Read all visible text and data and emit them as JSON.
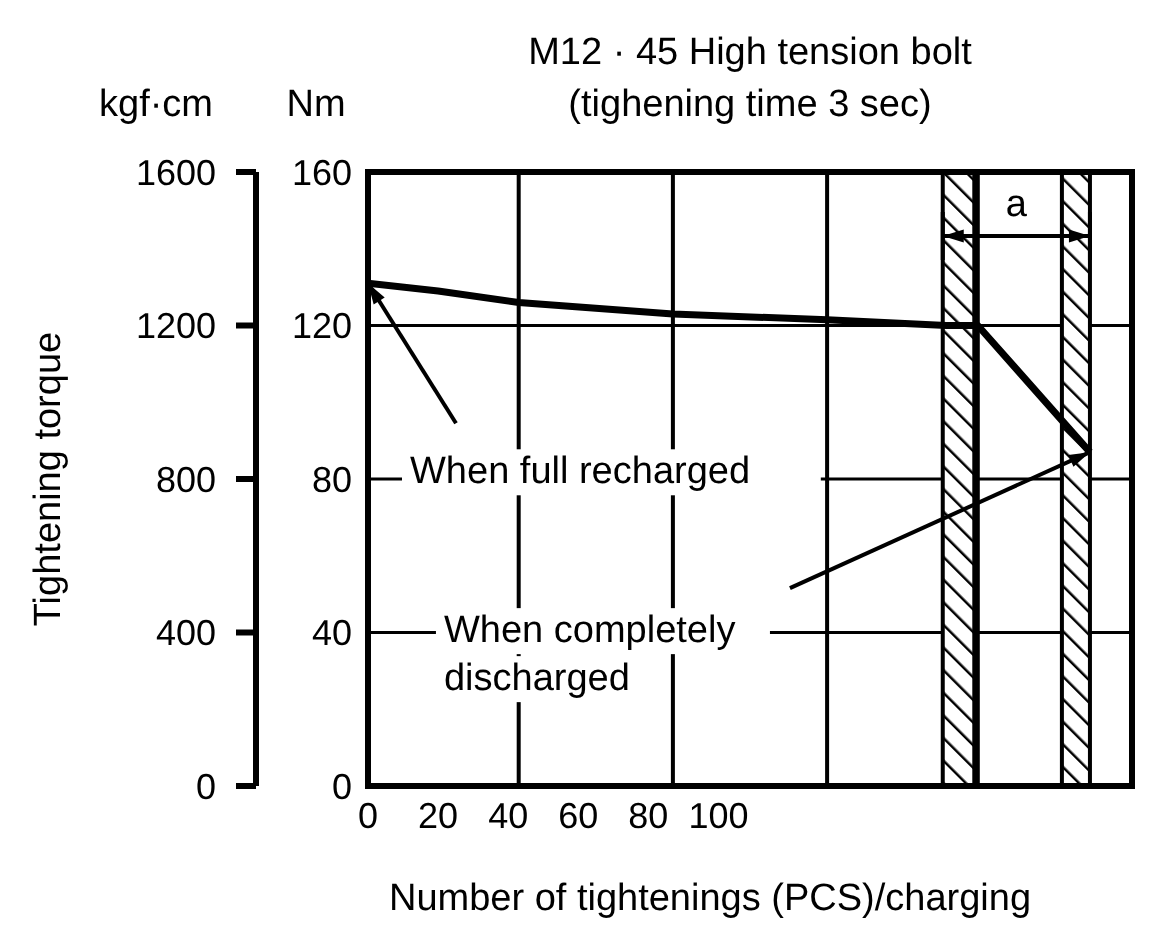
{
  "chart_data": {
    "type": "line",
    "title": "M12 · 45 High tension bolt",
    "subtitle": "(tighening time 3 sec)",
    "xlabel": "Number of tightenings (PCS)/charging",
    "ylabel": "Nm",
    "y2label": "kgf·cm",
    "x": [
      0,
      20,
      43,
      87,
      131,
      165,
      174,
      206
    ],
    "series": [
      {
        "color": "#000000",
        "values": [
          131,
          129,
          126,
          123,
          121.5,
          120,
          120,
          87
        ]
      }
    ],
    "xlim": [
      0,
      218
    ],
    "xticks": [
      0,
      20,
      40,
      60,
      80,
      100
    ],
    "ylim": [
      0,
      160
    ],
    "yticks": [
      0,
      40,
      80,
      120,
      160
    ],
    "y2lim": [
      0,
      1600
    ],
    "y2ticks": [
      0,
      400,
      800,
      1200,
      1600
    ],
    "grid": "y",
    "ref_lines": [
      {
        "axis": "x",
        "value": 43
      },
      {
        "axis": "x",
        "value": 87
      },
      {
        "axis": "x",
        "value": 131
      },
      {
        "axis": "x",
        "value": 174
      }
    ],
    "bands": [
      {
        "axis": "x",
        "from": 164,
        "to": 173
      },
      {
        "axis": "x",
        "from": 198,
        "to": 206
      }
    ],
    "annotations": [
      "Tightening torque",
      {
        "text": "When full recharged",
        "x": 0,
        "y": 131
      },
      "When completely discharged",
      "a"
    ]
  }
}
